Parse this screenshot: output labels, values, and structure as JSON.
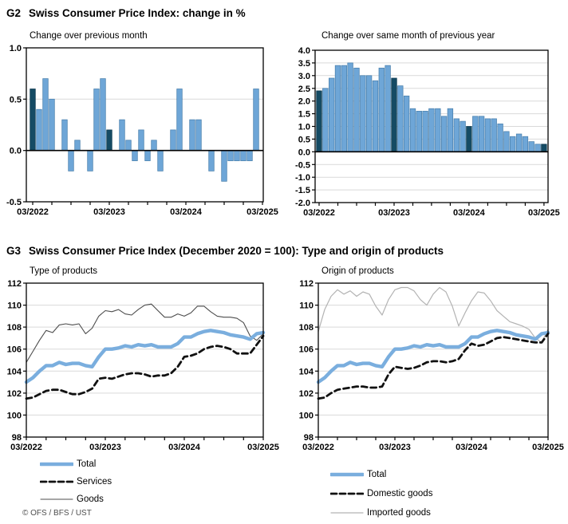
{
  "page": {
    "g2_label": "G2",
    "g2_title": "Swiss Consumer Price Index: change in %",
    "g3_label": "G3",
    "g3_title": "Swiss Consumer Price Index (December 2020 = 100): Type and origin of products",
    "footer": "© OFS / BFS / UST"
  },
  "colors": {
    "bar_light": "#6ea6d7",
    "bar_light_border": "#4a80ad",
    "bar_dark": "#154b64",
    "bar_dark_border": "#0e3a50",
    "accent_blue": "#7aaede",
    "dashed_black": "#111111",
    "thin_dark": "#4d4d4d",
    "thin_light": "#b3b3b3",
    "grid": "#d9d9d9",
    "axis": "#000000",
    "footer_text": "#4d4d4d"
  },
  "chart_data": [
    {
      "id": "mom",
      "type": "bar",
      "subtitle": "Change over previous month",
      "x_start": "03/2022",
      "x_end": "03/2025",
      "frequency": "monthly",
      "x_tick_labels": [
        "03/2022",
        "03/2023",
        "03/2024",
        "03/2025"
      ],
      "ylim": [
        -0.5,
        1.0
      ],
      "ytick_step": 0.5,
      "grid": true,
      "values": [
        0.6,
        0.4,
        0.7,
        0.5,
        0.0,
        0.3,
        -0.2,
        0.1,
        0.0,
        -0.2,
        0.6,
        0.7,
        0.2,
        0.0,
        0.3,
        0.1,
        -0.1,
        0.2,
        -0.1,
        0.1,
        -0.2,
        0.0,
        0.2,
        0.6,
        0.0,
        0.3,
        0.3,
        0.0,
        -0.2,
        0.0,
        -0.3,
        -0.1,
        -0.1,
        -0.1,
        -0.1,
        0.6,
        0.0
      ],
      "highlight_indices": [
        0,
        12,
        24,
        36
      ]
    },
    {
      "id": "yoy",
      "type": "bar",
      "subtitle": "Change over same month of previous year",
      "x_start": "03/2022",
      "x_end": "03/2025",
      "frequency": "monthly",
      "x_tick_labels": [
        "03/2022",
        "03/2023",
        "03/2024",
        "03/2025"
      ],
      "ylim": [
        -2.0,
        4.0
      ],
      "ytick_step": 0.5,
      "grid": true,
      "values": [
        2.4,
        2.5,
        2.9,
        3.4,
        3.4,
        3.5,
        3.3,
        3.0,
        3.0,
        2.8,
        3.3,
        3.4,
        2.9,
        2.6,
        2.2,
        1.7,
        1.6,
        1.6,
        1.7,
        1.7,
        1.4,
        1.7,
        1.3,
        1.2,
        1.0,
        1.4,
        1.4,
        1.3,
        1.3,
        1.1,
        0.8,
        0.6,
        0.7,
        0.6,
        0.4,
        0.3,
        0.3
      ],
      "highlight_indices": [
        0,
        12,
        24,
        36
      ]
    },
    {
      "id": "type",
      "type": "line",
      "subtitle": "Type of products",
      "x_start": "03/2022",
      "x_end": "03/2025",
      "frequency": "monthly",
      "x_tick_labels": [
        "03/2022",
        "03/2023",
        "03/2024",
        "03/2025"
      ],
      "ylim": [
        98,
        112
      ],
      "ytick_step": 2,
      "grid": true,
      "legend_position": "below",
      "series": [
        {
          "name": "Total",
          "style": "total",
          "values": [
            103.0,
            103.4,
            104.0,
            104.5,
            104.5,
            104.8,
            104.6,
            104.7,
            104.7,
            104.5,
            104.4,
            105.3,
            106.0,
            106.0,
            106.1,
            106.3,
            106.2,
            106.4,
            106.3,
            106.4,
            106.2,
            106.2,
            106.2,
            106.5,
            107.1,
            107.1,
            107.4,
            107.6,
            107.7,
            107.6,
            107.5,
            107.3,
            107.2,
            107.1,
            106.9,
            107.4,
            107.5
          ]
        },
        {
          "name": "Services",
          "style": "dashed",
          "values": [
            101.5,
            101.6,
            101.9,
            102.2,
            102.3,
            102.3,
            102.1,
            101.9,
            101.9,
            102.1,
            102.4,
            103.3,
            103.4,
            103.3,
            103.5,
            103.7,
            103.8,
            103.8,
            103.7,
            103.5,
            103.6,
            103.6,
            103.8,
            104.4,
            105.3,
            105.4,
            105.6,
            106.0,
            106.2,
            106.3,
            106.2,
            106.0,
            105.6,
            105.6,
            105.6,
            106.4,
            107.2
          ]
        },
        {
          "name": "Goods",
          "style": "thin_dark",
          "values": [
            104.8,
            105.8,
            106.8,
            107.7,
            107.5,
            108.2,
            108.3,
            108.2,
            108.3,
            107.4,
            107.9,
            109.0,
            109.5,
            109.4,
            109.6,
            109.2,
            109.1,
            109.6,
            110.0,
            110.1,
            109.5,
            108.9,
            108.9,
            109.2,
            109.0,
            109.3,
            109.9,
            109.9,
            109.4,
            109.0,
            108.9,
            108.9,
            108.8,
            108.4,
            107.2,
            106.8,
            107.4
          ]
        }
      ]
    },
    {
      "id": "origin",
      "type": "line",
      "subtitle": "Origin of products",
      "x_start": "03/2022",
      "x_end": "03/2025",
      "frequency": "monthly",
      "x_tick_labels": [
        "03/2022",
        "03/2023",
        "03/2024",
        "03/2025"
      ],
      "ylim": [
        98,
        112
      ],
      "ytick_step": 2,
      "grid": true,
      "legend_position": "below",
      "series": [
        {
          "name": "Total",
          "style": "total",
          "values": [
            103.0,
            103.4,
            104.0,
            104.5,
            104.5,
            104.8,
            104.6,
            104.7,
            104.7,
            104.5,
            104.4,
            105.3,
            106.0,
            106.0,
            106.1,
            106.3,
            106.2,
            106.4,
            106.3,
            106.4,
            106.2,
            106.2,
            106.2,
            106.5,
            107.1,
            107.1,
            107.4,
            107.6,
            107.7,
            107.6,
            107.5,
            107.3,
            107.2,
            107.1,
            106.9,
            107.4,
            107.5
          ]
        },
        {
          "name": "Domestic goods",
          "style": "dashed",
          "values": [
            101.5,
            101.6,
            102.0,
            102.3,
            102.4,
            102.5,
            102.6,
            102.6,
            102.5,
            102.5,
            102.6,
            103.7,
            104.4,
            104.3,
            104.2,
            104.3,
            104.5,
            104.8,
            104.9,
            104.9,
            104.8,
            104.9,
            105.1,
            105.9,
            106.5,
            106.3,
            106.4,
            106.7,
            107.0,
            107.1,
            107.0,
            106.9,
            106.8,
            106.7,
            106.6,
            106.6,
            107.4
          ]
        },
        {
          "name": "Imported goods",
          "style": "thin_light",
          "values": [
            107.6,
            109.6,
            110.8,
            111.4,
            111.0,
            111.3,
            110.8,
            111.2,
            111.0,
            109.9,
            109.1,
            110.5,
            111.4,
            111.6,
            111.6,
            111.3,
            110.5,
            110.0,
            111.0,
            111.6,
            111.2,
            109.9,
            108.1,
            109.3,
            110.4,
            111.2,
            111.1,
            110.4,
            109.5,
            109.0,
            108.5,
            108.3,
            108.1,
            107.8,
            107.0,
            106.6,
            107.8
          ]
        }
      ]
    }
  ]
}
